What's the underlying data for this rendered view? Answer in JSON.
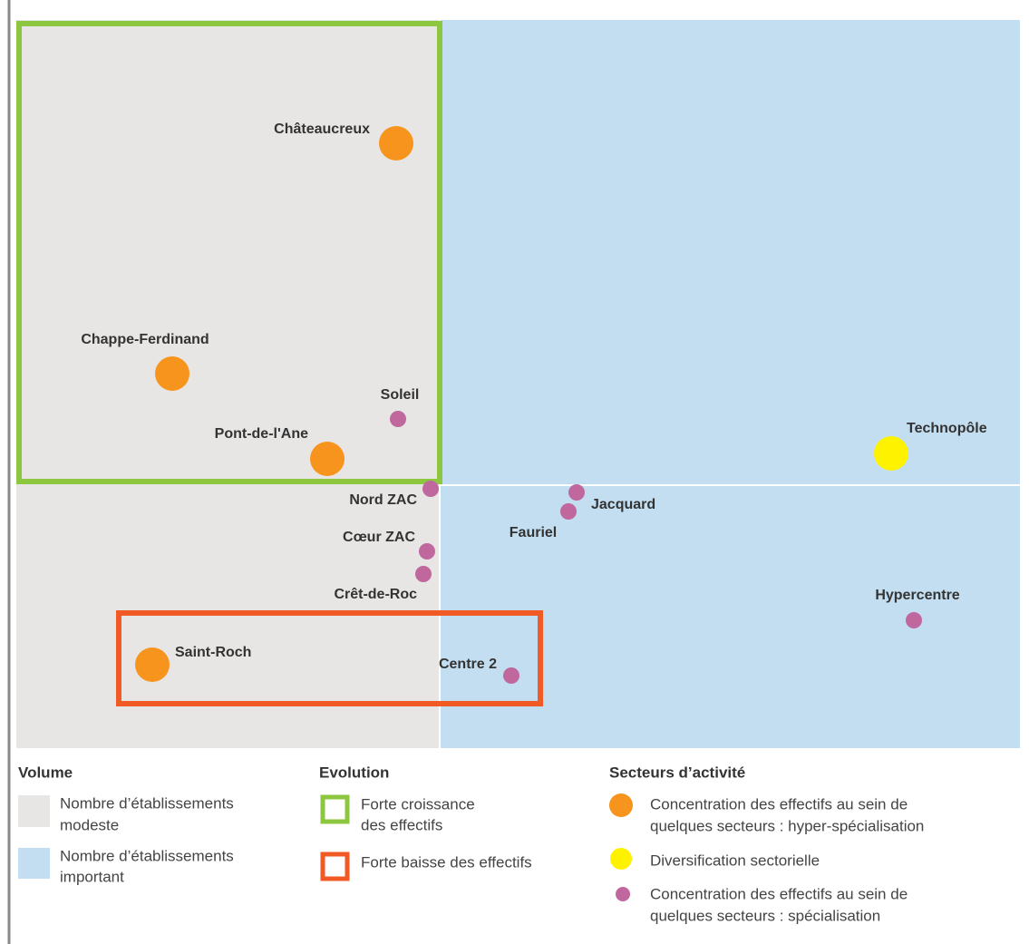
{
  "nodes": [
    {
      "label": "Châteaucreux",
      "kind": "hyper"
    },
    {
      "label": "Chappe-Ferdinand",
      "kind": "hyper"
    },
    {
      "label": "Soleil",
      "kind": "spec"
    },
    {
      "label": "Pont-de-l'Ane",
      "kind": "hyper"
    },
    {
      "label": "Technopôle",
      "kind": "div"
    },
    {
      "label": "Nord ZAC",
      "kind": "spec"
    },
    {
      "label": "Jacquard",
      "kind": "spec"
    },
    {
      "label": "Fauriel",
      "kind": "spec"
    },
    {
      "label": "Cœur ZAC",
      "kind": "spec"
    },
    {
      "label": "Crêt-de-Roc",
      "kind": "spec"
    },
    {
      "label": "Hypercentre",
      "kind": "spec"
    },
    {
      "label": "Saint-Roch",
      "kind": "hyper"
    },
    {
      "label": "Centre 2",
      "kind": "spec"
    }
  ],
  "legend": {
    "volume": {
      "title": "Volume",
      "items": [
        {
          "lines": [
            "Nombre d’établissements",
            "modeste"
          ]
        },
        {
          "lines": [
            "Nombre d’établissements",
            "important"
          ]
        }
      ]
    },
    "evolution": {
      "title": "Evolution",
      "items": [
        {
          "lines": [
            "Forte croissance",
            "des effectifs"
          ]
        },
        {
          "lines": [
            "Forte baisse des effectifs"
          ]
        }
      ]
    },
    "secteurs": {
      "title": "Secteurs d’activité",
      "items": [
        {
          "lines": [
            "Concentration des effectifs au sein de",
            "quelques secteurs : hyper-spécialisation"
          ]
        },
        {
          "lines": [
            "Diversification sectorielle"
          ]
        },
        {
          "lines": [
            "Concentration des effectifs au sein de",
            "quelques secteurs : spécialisation"
          ]
        }
      ]
    }
  }
}
